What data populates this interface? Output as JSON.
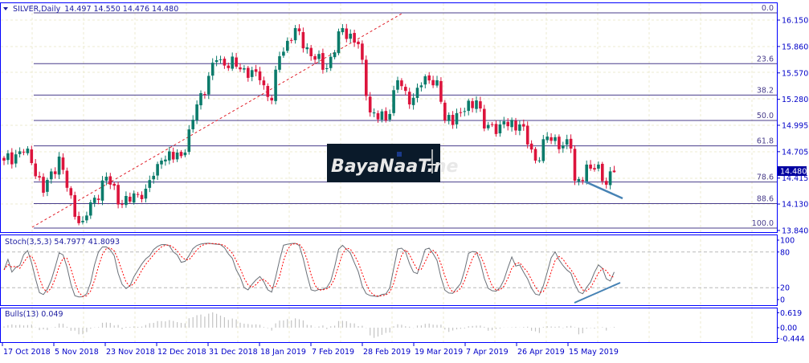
{
  "header": {
    "symbol": "SILVER,Daily",
    "ohlc": "14.497 14.550 14.476 14.480"
  },
  "watermark": "BayaNaaT.ne",
  "colors": {
    "bull": "#0b7b6b",
    "bear": "#dc143c",
    "frame": "#0000ff",
    "fib": "#483d8b",
    "trend": "#e0202a",
    "divergence": "#4682b4",
    "price_tag": "#0000a0",
    "stoch_main": "#6a7078",
    "stoch_signal": "#ff0000",
    "bulls": "#c4c4c4"
  },
  "chart_data": [
    {
      "type": "candlestick",
      "title": "SILVER,Daily",
      "last": {
        "open": 14.497,
        "high": 14.55,
        "low": 14.476,
        "close": 14.48
      },
      "current_price_label": "14.480",
      "y_ticks": [
        "16.150",
        "15.860",
        "15.570",
        "15.280",
        "14.995",
        "14.705",
        "14.415",
        "14.130",
        "13.840"
      ],
      "ylim": [
        13.84,
        16.15
      ],
      "x_ticks": [
        "17 Oct 2018",
        "5 Nov 2018",
        "23 Nov 2018",
        "12 Dec 2018",
        "31 Dec 2018",
        "18 Jan 2019",
        "7 Feb 2019",
        "28 Feb 2019",
        "19 Mar 2019",
        "7 Apr 2019",
        "26 Apr 2019",
        "15 May 2019"
      ],
      "close_samples_by_bar": [
        [
          0,
          14.607
        ],
        [
          6,
          14.739
        ],
        [
          10,
          14.254
        ],
        [
          14,
          14.651
        ],
        [
          18,
          13.99
        ],
        [
          20,
          13.945
        ],
        [
          26,
          14.43
        ],
        [
          30,
          14.122
        ],
        [
          36,
          14.298
        ],
        [
          40,
          14.607
        ],
        [
          46,
          14.695
        ],
        [
          49,
          15.224
        ],
        [
          54,
          15.709
        ],
        [
          61,
          15.621
        ],
        [
          65,
          15.489
        ],
        [
          68,
          15.268
        ],
        [
          70,
          15.753
        ],
        [
          74,
          16.062
        ],
        [
          78,
          15.753
        ],
        [
          82,
          15.621
        ],
        [
          86,
          16.062
        ],
        [
          90,
          15.885
        ],
        [
          93,
          15.136
        ],
        [
          97,
          15.048
        ],
        [
          100,
          15.489
        ],
        [
          103,
          15.224
        ],
        [
          107,
          15.533
        ],
        [
          110,
          15.489
        ],
        [
          112,
          15.048
        ],
        [
          116,
          15.136
        ],
        [
          120,
          15.268
        ],
        [
          122,
          14.96
        ],
        [
          126,
          15.004
        ],
        [
          131,
          15.004
        ],
        [
          135,
          14.607
        ],
        [
          138,
          14.871
        ],
        [
          144,
          14.739
        ],
        [
          145,
          14.386
        ],
        [
          149,
          14.519
        ],
        [
          151,
          14.563
        ],
        [
          153,
          14.342
        ],
        [
          155,
          14.48
        ]
      ],
      "fibonacci": {
        "high": 16.229,
        "low": 13.866,
        "levels": [
          "0.0",
          "23.6",
          "38.2",
          "50.0",
          "61.8",
          "78.6",
          "88.6",
          "100.0"
        ]
      },
      "grid": true
    },
    {
      "type": "line",
      "title": "Stoch(3,5,3) 54.7977 41.8093",
      "ylim": [
        0,
        100
      ],
      "y_ticks": [
        "100",
        "80",
        "20",
        "0"
      ],
      "levels": [
        80,
        20
      ]
    },
    {
      "type": "bar",
      "title": "Bulls(13) 0.049",
      "ylim": [
        -0.444,
        0.619
      ],
      "y_ticks": [
        "0.619",
        "0.00",
        "-0.444"
      ]
    }
  ]
}
